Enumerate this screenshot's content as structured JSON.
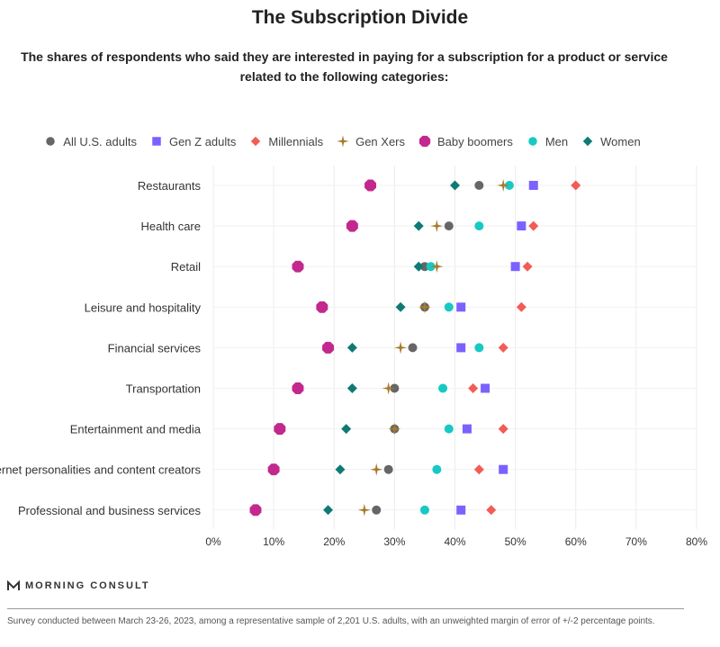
{
  "chart_data": {
    "type": "scatter",
    "title": "The Subscription Divide",
    "subtitle": "The shares of respondents who said they are interested in paying for a subscription for a product or service related to the following categories:",
    "categories": [
      "Restaurants",
      "Health care",
      "Retail",
      "Leisure and hospitality",
      "Financial services",
      "Transportation",
      "Entertainment and media",
      "Internet personalities and content creators",
      "Professional and business services"
    ],
    "xlim": [
      0,
      80
    ],
    "xticks": [
      0,
      10,
      20,
      30,
      40,
      50,
      60,
      70,
      80
    ],
    "xtick_labels": [
      "0%",
      "10%",
      "20%",
      "30%",
      "40%",
      "50%",
      "60%",
      "70%",
      "80%"
    ],
    "grid": true,
    "legend_position": "top",
    "series": [
      {
        "name": "All U.S. adults",
        "marker": "circle",
        "color": "#666666",
        "values": [
          44,
          39,
          35,
          35,
          33,
          30,
          30,
          29,
          27
        ]
      },
      {
        "name": "Gen Z adults",
        "marker": "square",
        "color": "#7b61ff",
        "values": [
          53,
          51,
          50,
          41,
          41,
          45,
          42,
          48,
          41
        ]
      },
      {
        "name": "Millennials",
        "marker": "diamond",
        "color": "#f25c54",
        "values": [
          60,
          53,
          52,
          51,
          48,
          43,
          48,
          44,
          46
        ]
      },
      {
        "name": "Gen Xers",
        "marker": "star",
        "color": "#a87a2c",
        "values": [
          48,
          37,
          37,
          35,
          31,
          29,
          30,
          27,
          25
        ]
      },
      {
        "name": "Baby boomers",
        "marker": "octagon",
        "color": "#c2288e",
        "values": [
          26,
          23,
          14,
          18,
          19,
          14,
          11,
          10,
          7
        ]
      },
      {
        "name": "Men",
        "marker": "circle",
        "color": "#17c9c3",
        "values": [
          49,
          44,
          36,
          39,
          44,
          38,
          39,
          37,
          35
        ]
      },
      {
        "name": "Women",
        "marker": "diamond",
        "color": "#0f7a75",
        "values": [
          40,
          34,
          34,
          31,
          23,
          23,
          22,
          21,
          19
        ]
      }
    ]
  },
  "brand": {
    "name": "MORNING CONSULT"
  },
  "footnote": "Survey conducted between March 23-26, 2023, among a representative sample of 2,201 U.S. adults, with an unweighted margin of error of +/-2 percentage points."
}
